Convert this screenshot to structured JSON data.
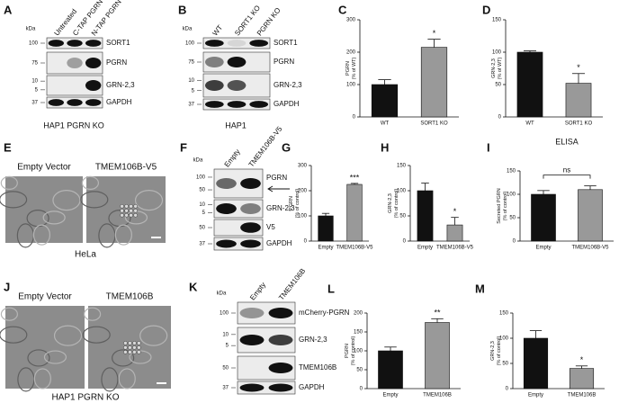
{
  "chart_data": [
    {
      "panel": "C",
      "type": "bar",
      "ylabel": [
        "PGRN",
        "(% of WT)"
      ],
      "categories": [
        "WT",
        "SORT1 KO"
      ],
      "values": [
        100,
        215
      ],
      "errors": [
        15,
        25
      ],
      "colors": [
        "#111111",
        "#999999"
      ],
      "ylim": [
        0,
        300
      ],
      "yticks": [
        0,
        100,
        200,
        300
      ],
      "annotation": "*"
    },
    {
      "panel": "D",
      "type": "bar",
      "ylabel": [
        "GRN-2,3",
        "(% of WT)"
      ],
      "categories": [
        "WT",
        "SORT1 KO"
      ],
      "values": [
        100,
        52
      ],
      "errors": [
        2,
        15
      ],
      "colors": [
        "#111111",
        "#999999"
      ],
      "ylim": [
        0,
        150
      ],
      "yticks": [
        0,
        50,
        100,
        150
      ],
      "annotation": "*"
    },
    {
      "panel": "G",
      "type": "bar",
      "ylabel": [
        "PGRN",
        "(% of control)"
      ],
      "categories": [
        "Empty",
        "TMEM106B-V5"
      ],
      "values": [
        100,
        225
      ],
      "errors": [
        10,
        4
      ],
      "colors": [
        "#111111",
        "#999999"
      ],
      "ylim": [
        0,
        300
      ],
      "yticks": [
        0,
        100,
        200,
        300
      ],
      "annotation": "***"
    },
    {
      "panel": "H",
      "type": "bar",
      "ylabel": [
        "GRN-2,3",
        "(% of control)"
      ],
      "categories": [
        "Empty",
        "TMEM106B-V5"
      ],
      "values": [
        100,
        32
      ],
      "errors": [
        15,
        15
      ],
      "colors": [
        "#111111",
        "#999999"
      ],
      "ylim": [
        0,
        150
      ],
      "yticks": [
        0,
        50,
        100,
        150
      ],
      "annotation": "*"
    },
    {
      "panel": "I",
      "type": "bar",
      "title": "ELISA",
      "ylabel": [
        "Secreted PGRN",
        "(% of control)"
      ],
      "categories": [
        "Empty",
        "TMEM106B-V5"
      ],
      "values": [
        100,
        110
      ],
      "errors": [
        8,
        8
      ],
      "colors": [
        "#111111",
        "#999999"
      ],
      "ylim": [
        0,
        150
      ],
      "yticks": [
        0,
        50,
        100,
        150
      ],
      "annotation": "ns"
    },
    {
      "panel": "L",
      "type": "bar",
      "ylabel": [
        "PGRN",
        "(% of control)"
      ],
      "categories": [
        "Empty",
        "TMEM106B"
      ],
      "values": [
        100,
        175
      ],
      "errors": [
        10,
        10
      ],
      "colors": [
        "#111111",
        "#999999"
      ],
      "ylim": [
        0,
        200
      ],
      "yticks": [
        0,
        50,
        100,
        150,
        200
      ],
      "annotation": "**"
    },
    {
      "panel": "M",
      "type": "bar",
      "ylabel": [
        "GRN-2,3",
        "(% of control)"
      ],
      "categories": [
        "Empty",
        "TMEM106B"
      ],
      "values": [
        100,
        40
      ],
      "errors": [
        15,
        5
      ],
      "colors": [
        "#111111",
        "#999999"
      ],
      "ylim": [
        0,
        150
      ],
      "yticks": [
        0,
        50,
        100,
        150
      ],
      "annotation": "*"
    }
  ],
  "blots": [
    {
      "panel": "A",
      "kda_label": "kDa",
      "lanes": [
        "Untreated",
        "C-TAP PGRN",
        "N-TAP PGRN"
      ],
      "rows": [
        {
          "protein": "SORT1",
          "markers": [
            100
          ]
        },
        {
          "protein": "PGRN",
          "markers": [
            75
          ]
        },
        {
          "protein": "GRN-2,3",
          "markers": [
            10,
            5
          ]
        },
        {
          "protein": "GAPDH",
          "markers": [
            37
          ]
        }
      ],
      "caption": "HAP1 PGRN KO"
    },
    {
      "panel": "B",
      "kda_label": "kDa",
      "lanes": [
        "WT",
        "SORT1 KO",
        "PGRN KO"
      ],
      "rows": [
        {
          "protein": "SORT1",
          "markers": [
            100
          ]
        },
        {
          "protein": "PGRN",
          "markers": [
            75
          ]
        },
        {
          "protein": "GRN-2,3",
          "markers": [
            10,
            5
          ]
        },
        {
          "protein": "GAPDH",
          "markers": [
            37
          ]
        }
      ],
      "caption": "HAP1"
    },
    {
      "panel": "F",
      "kda_label": "kDa",
      "lanes": [
        "Empty",
        "TMEM106B-V5"
      ],
      "rows": [
        {
          "protein": "PGRN",
          "markers": [
            100,
            50
          ]
        },
        {
          "protein": "GRN-2,3",
          "markers": [
            10,
            5
          ]
        },
        {
          "protein": "V5",
          "markers": [
            50
          ]
        },
        {
          "protein": "GAPDH",
          "markers": [
            37
          ]
        }
      ]
    },
    {
      "panel": "K",
      "kda_label": "kDa",
      "lanes": [
        "Empty",
        "TMEM106B"
      ],
      "rows": [
        {
          "protein": "mCherry-PGRN",
          "markers": [
            100
          ]
        },
        {
          "protein": "GRN-2,3",
          "markers": [
            10,
            5
          ]
        },
        {
          "protein": "TMEM106B",
          "markers": [
            50
          ]
        },
        {
          "protein": "GAPDH",
          "markers": [
            37
          ]
        }
      ]
    }
  ],
  "images": [
    {
      "panel": "E",
      "labels": [
        "Empty Vector",
        "TMEM106B-V5"
      ],
      "caption": "HeLa"
    },
    {
      "panel": "J",
      "labels": [
        "Empty Vector",
        "TMEM106B"
      ],
      "caption": "HAP1 PGRN KO"
    }
  ]
}
